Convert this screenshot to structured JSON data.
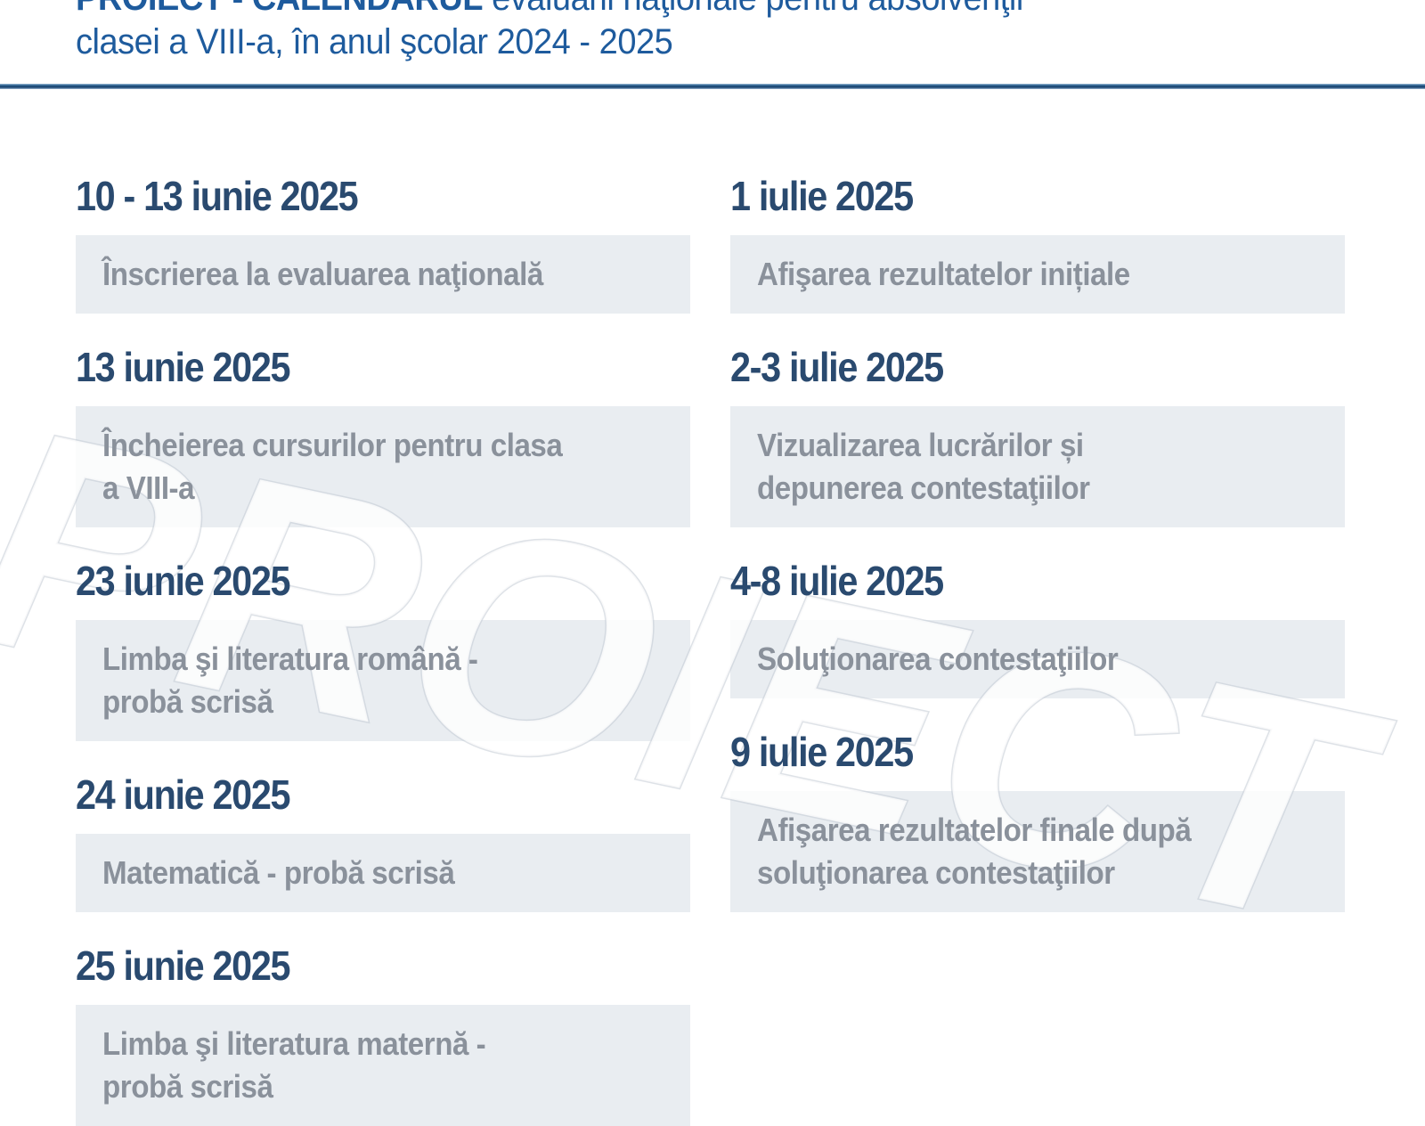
{
  "title": {
    "bold": "PROIECT - CALENDARUL",
    "rest": " evaluării naţionale pentru absolvenţii",
    "line2": "clasei a VIII-a, în anul şcolar 2024 - 2025"
  },
  "watermark": "PROIECT",
  "colors": {
    "title_blue": "#1e5b9d",
    "heading_navy": "#2a4a6f",
    "box_background": "#e9edf1",
    "box_text_gray": "#8a919b",
    "rule_blue": "#17406b",
    "watermark_stroke": "#c3cad3"
  },
  "columns": {
    "left": [
      {
        "date": "10 - 13 iunie 2025",
        "event": "Înscrierea la evaluarea naţională"
      },
      {
        "date": "13 iunie 2025",
        "event": "Încheierea cursurilor pentru clasa\na VIII-a"
      },
      {
        "date": "23 iunie 2025",
        "event": "Limba şi literatura română -\nprobă scrisă"
      },
      {
        "date": "24 iunie 2025",
        "event": "Matematică - probă scrisă"
      },
      {
        "date": "25 iunie 2025",
        "event": "Limba şi literatura maternă -\nprobă scrisă"
      }
    ],
    "right": [
      {
        "date": "1 iulie 2025",
        "event": "Afişarea rezultatelor inițiale"
      },
      {
        "date": "2-3 iulie 2025",
        "event": "Vizualizarea lucrărilor și\ndepunerea contestaţiilor"
      },
      {
        "date": "4-8 iulie 2025",
        "event": "Soluţionarea contestaţiilor"
      },
      {
        "date": "9 iulie 2025",
        "event": "Afişarea rezultatelor finale după\nsoluţionarea contestaţiilor"
      }
    ]
  }
}
